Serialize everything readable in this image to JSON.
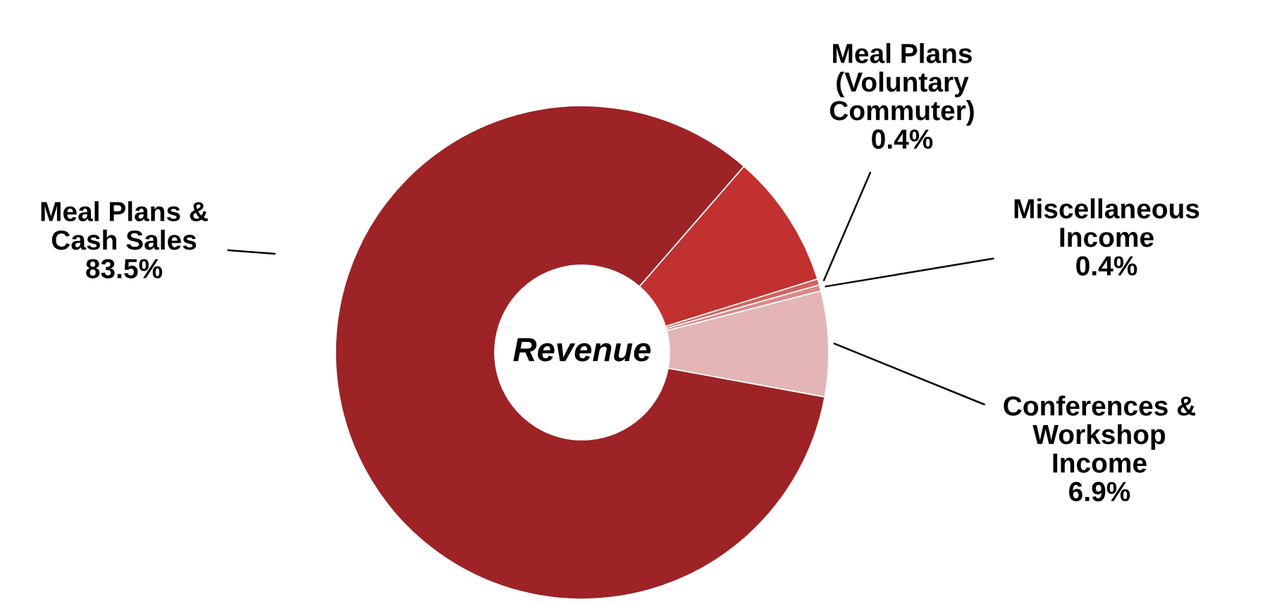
{
  "chart_data": {
    "type": "donut",
    "title": "Revenue",
    "categories": [
      null,
      "Meal Plans\n(Voluntary\nCommuter)",
      "Miscellaneous\nIncome",
      "Conferences &\nWorkshop\nIncome",
      "Meal Plans &\nCash Sales"
    ],
    "values": [
      8.8,
      0.4,
      0.4,
      6.9,
      83.5
    ],
    "colors": [
      "#c0312f",
      "#d4625f",
      "#d98a88",
      "#e3b5b5",
      "#9d2326"
    ],
    "value_labels": [
      null,
      "0.4%",
      "0.4%",
      "6.9%",
      "83.5%"
    ],
    "legend": false
  }
}
